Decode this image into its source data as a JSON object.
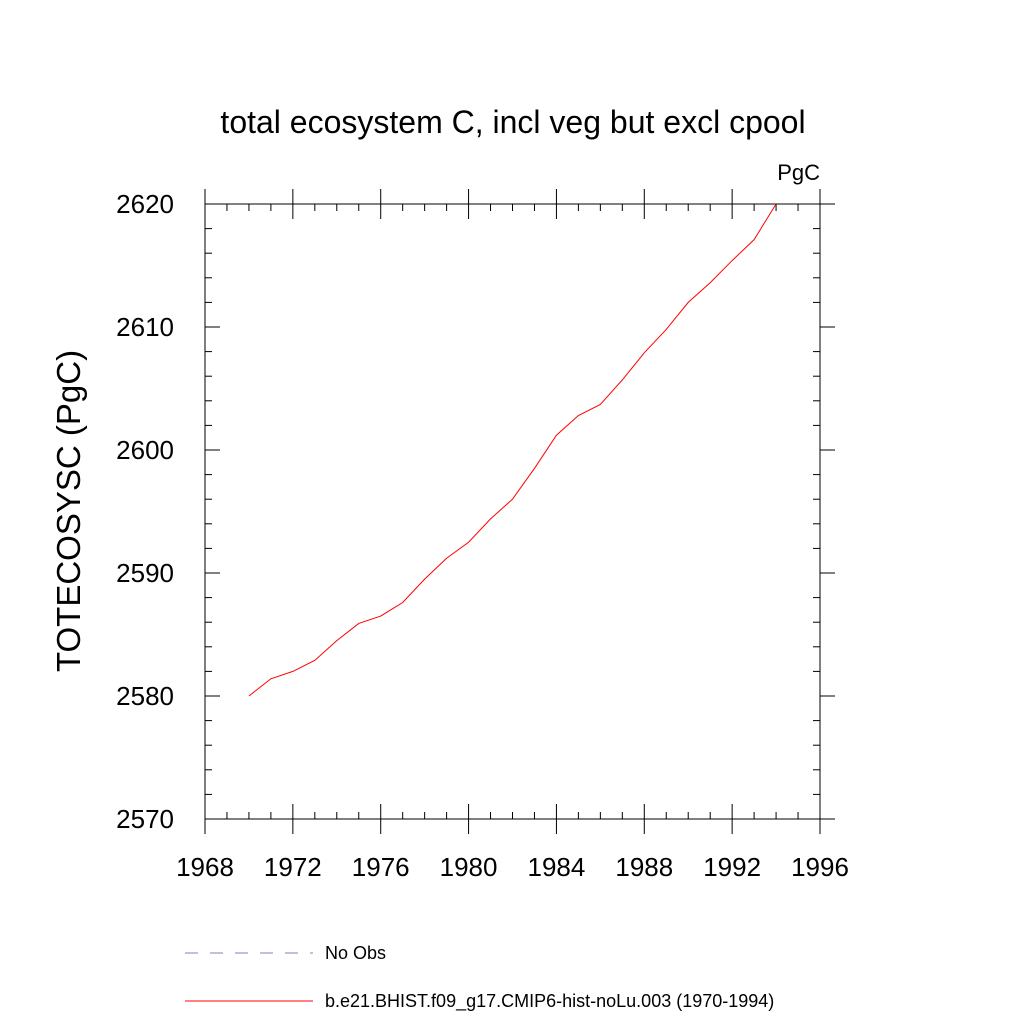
{
  "chart_data": {
    "type": "line",
    "title": "total ecosystem C, incl veg but excl cpool",
    "units_label": "PgC",
    "xlabel": "",
    "ylabel": "TOTECOSYSC  (PgC)",
    "xlim": [
      1968,
      1996
    ],
    "ylim": [
      2570,
      2620
    ],
    "x_ticks": [
      1968,
      1972,
      1976,
      1980,
      1984,
      1988,
      1992,
      1996
    ],
    "y_ticks": [
      2570,
      2580,
      2590,
      2600,
      2610,
      2620
    ],
    "x_minor_step": 1,
    "y_minor_step": 2,
    "grid": false,
    "series": [
      {
        "name": "b.e21.BHIST.f09_g17.CMIP6-hist-noLu.003 (1970-1994)",
        "color": "#ff0000",
        "style": "solid",
        "x": [
          1970,
          1971,
          1972,
          1973,
          1974,
          1975,
          1976,
          1977,
          1978,
          1979,
          1980,
          1981,
          1982,
          1983,
          1984,
          1985,
          1986,
          1987,
          1988,
          1989,
          1990,
          1991,
          1992,
          1993,
          1994
        ],
        "values": [
          2580.0,
          2581.4,
          2582.0,
          2582.9,
          2584.5,
          2585.9,
          2586.5,
          2587.6,
          2589.5,
          2591.2,
          2592.5,
          2594.4,
          2596.0,
          2598.5,
          2601.2,
          2602.8,
          2603.7,
          2605.7,
          2607.9,
          2609.8,
          2612.0,
          2613.6,
          2615.4,
          2617.1,
          2620.0
        ]
      }
    ],
    "legend": {
      "position": "bottom",
      "entries": [
        {
          "label": "No Obs",
          "color": "#8080c0",
          "style": "dashed"
        },
        {
          "label": "b.e21.BHIST.f09_g17.CMIP6-hist-noLu.003 (1970-1994)",
          "color": "#ff0000",
          "style": "solid"
        }
      ]
    }
  }
}
